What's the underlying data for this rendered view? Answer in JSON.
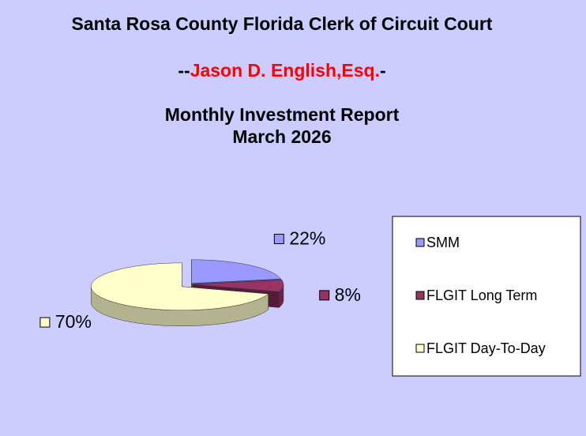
{
  "chart_data": {
    "type": "pie",
    "title": "Santa Rosa County Florida Clerk of Circuit Court",
    "title_line2": {
      "prefix": "--",
      "name": "Jason D. English,Esq.",
      "suffix": "-"
    },
    "subtitle": [
      "Monthly Investment Report",
      "March 2026"
    ],
    "categories": [
      "SMM",
      "FLGIT Long Term",
      "FLGIT Day-To-Day"
    ],
    "values": [
      22,
      8,
      70
    ],
    "value_labels": [
      "22%",
      "8%",
      "70%"
    ],
    "colors": [
      "#9999ff",
      "#993366",
      "#ffffcc"
    ],
    "legend": "right"
  }
}
